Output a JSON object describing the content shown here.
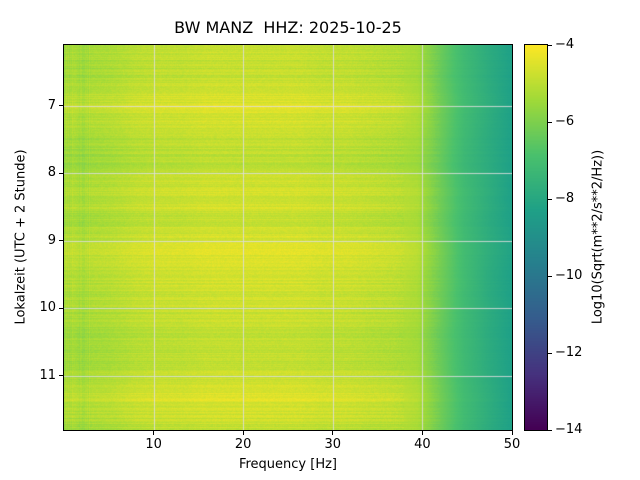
{
  "figure": {
    "title": "BW MANZ  HHZ: 2025-10-25",
    "background": "#ffffff"
  },
  "axes": {
    "xlabel": "Frequency [Hz]",
    "ylabel": "Lokalzeit (UTC + 2 Stunde)",
    "x_ticks": [
      10,
      20,
      30,
      40,
      50
    ],
    "y_ticks": [
      7,
      8,
      9,
      10,
      11
    ],
    "xlim": [
      0,
      50
    ],
    "ylim_top_to_bottom": [
      6.1,
      11.8
    ],
    "grid": true,
    "grid_color": "#dedede"
  },
  "colorbar": {
    "label": "Log10(Sqrt(m**2/s**2/Hz))",
    "ticks": [
      -4,
      -6,
      -8,
      -10,
      -12,
      -14
    ],
    "range": [
      -14,
      -4
    ],
    "colormap": "viridis"
  },
  "chart_data": {
    "type": "heatmap",
    "title": "BW MANZ  HHZ: 2025-10-25",
    "xlabel": "Frequency [Hz]",
    "ylabel": "Lokalzeit (UTC + 2 Stunde)",
    "colormap": "viridis",
    "value_label": "Log10(Sqrt(m**2/s**2/Hz))",
    "value_range": [
      -14,
      -4
    ],
    "xlim": [
      0,
      50
    ],
    "ylim": [
      6.1,
      11.8
    ],
    "y_increases_downward": true,
    "x_bin_centers_hz": [
      1.25,
      3.75,
      6.25,
      8.75,
      11.25,
      13.75,
      16.25,
      18.75,
      21.25,
      23.75,
      26.25,
      28.75,
      31.25,
      33.75,
      36.25,
      38.75,
      41.25,
      43.75,
      46.25,
      48.75
    ],
    "y_bin_centers_hours": [
      6.3,
      6.71,
      7.11,
      7.52,
      7.93,
      8.33,
      8.74,
      9.15,
      9.55,
      9.96,
      10.37,
      10.77,
      11.18,
      11.59
    ],
    "grid_values_log10": [
      [
        -5.4,
        -5.3,
        -5.2,
        -5.0,
        -4.9,
        -4.9,
        -4.8,
        -4.8,
        -4.8,
        -4.8,
        -4.8,
        -4.9,
        -4.9,
        -5.0,
        -5.1,
        -5.3,
        -6.3,
        -7.2,
        -7.8,
        -8.3
      ],
      [
        -5.5,
        -5.4,
        -5.3,
        -5.1,
        -5.0,
        -5.0,
        -4.9,
        -4.9,
        -4.9,
        -4.9,
        -4.9,
        -5.0,
        -5.0,
        -5.1,
        -5.2,
        -5.4,
        -6.4,
        -7.2,
        -7.8,
        -8.3
      ],
      [
        -5.1,
        -5.0,
        -4.9,
        -4.7,
        -4.6,
        -4.6,
        -4.5,
        -4.5,
        -4.5,
        -4.5,
        -4.5,
        -4.6,
        -4.6,
        -4.7,
        -4.8,
        -5.1,
        -6.2,
        -7.1,
        -7.7,
        -8.3
      ],
      [
        -5.4,
        -5.3,
        -5.2,
        -5.0,
        -4.9,
        -4.9,
        -4.8,
        -4.8,
        -4.8,
        -4.8,
        -4.8,
        -4.9,
        -4.9,
        -5.0,
        -5.1,
        -5.3,
        -6.3,
        -7.2,
        -7.8,
        -8.3
      ],
      [
        -5.6,
        -5.5,
        -5.4,
        -5.2,
        -5.1,
        -5.1,
        -5.0,
        -5.0,
        -5.0,
        -5.0,
        -5.0,
        -5.1,
        -5.1,
        -5.2,
        -5.3,
        -5.5,
        -6.4,
        -7.3,
        -7.8,
        -8.3
      ],
      [
        -5.2,
        -5.1,
        -5.0,
        -4.8,
        -4.7,
        -4.7,
        -4.6,
        -4.6,
        -4.6,
        -4.6,
        -4.6,
        -4.7,
        -4.7,
        -4.8,
        -4.9,
        -5.1,
        -6.2,
        -7.1,
        -7.7,
        -8.3
      ],
      [
        -5.4,
        -5.3,
        -5.2,
        -5.0,
        -4.9,
        -4.9,
        -4.8,
        -4.8,
        -4.8,
        -4.8,
        -4.8,
        -4.9,
        -4.9,
        -5.0,
        -5.1,
        -5.3,
        -6.3,
        -7.2,
        -7.8,
        -8.3
      ],
      [
        -5.0,
        -4.9,
        -4.8,
        -4.6,
        -4.5,
        -4.5,
        -4.4,
        -4.4,
        -4.4,
        -4.4,
        -4.4,
        -4.5,
        -4.5,
        -4.6,
        -4.7,
        -5.0,
        -6.1,
        -7.1,
        -7.7,
        -8.2
      ],
      [
        -5.2,
        -5.1,
        -5.0,
        -4.8,
        -4.7,
        -4.7,
        -4.6,
        -4.6,
        -4.6,
        -4.6,
        -4.6,
        -4.7,
        -4.7,
        -4.8,
        -4.9,
        -5.2,
        -6.2,
        -7.1,
        -7.8,
        -8.3
      ],
      [
        -5.4,
        -5.3,
        -5.2,
        -5.0,
        -4.9,
        -4.9,
        -4.8,
        -4.8,
        -4.8,
        -4.8,
        -4.8,
        -4.9,
        -4.9,
        -5.0,
        -5.1,
        -5.3,
        -6.3,
        -7.2,
        -7.8,
        -8.3
      ],
      [
        -5.5,
        -5.4,
        -5.3,
        -5.1,
        -5.0,
        -5.0,
        -4.9,
        -4.9,
        -4.9,
        -4.9,
        -4.9,
        -5.0,
        -5.0,
        -5.1,
        -5.2,
        -5.4,
        -6.4,
        -7.2,
        -7.8,
        -8.3
      ],
      [
        -5.4,
        -5.3,
        -5.2,
        -5.0,
        -4.9,
        -4.9,
        -4.8,
        -4.8,
        -4.8,
        -4.8,
        -4.8,
        -4.9,
        -4.9,
        -5.0,
        -5.1,
        -5.3,
        -6.3,
        -7.2,
        -7.8,
        -8.3
      ],
      [
        -5.1,
        -5.0,
        -4.9,
        -4.7,
        -4.6,
        -4.6,
        -4.5,
        -4.5,
        -4.5,
        -4.5,
        -4.5,
        -4.6,
        -4.6,
        -4.7,
        -4.8,
        -5.1,
        -6.2,
        -7.1,
        -7.7,
        -8.3
      ],
      [
        -5.5,
        -5.4,
        -5.3,
        -5.1,
        -5.0,
        -5.0,
        -4.9,
        -4.9,
        -4.9,
        -4.9,
        -4.9,
        -5.0,
        -5.0,
        -5.1,
        -5.1,
        -5.3,
        -6.3,
        -7.2,
        -7.8,
        -8.3
      ]
    ]
  }
}
